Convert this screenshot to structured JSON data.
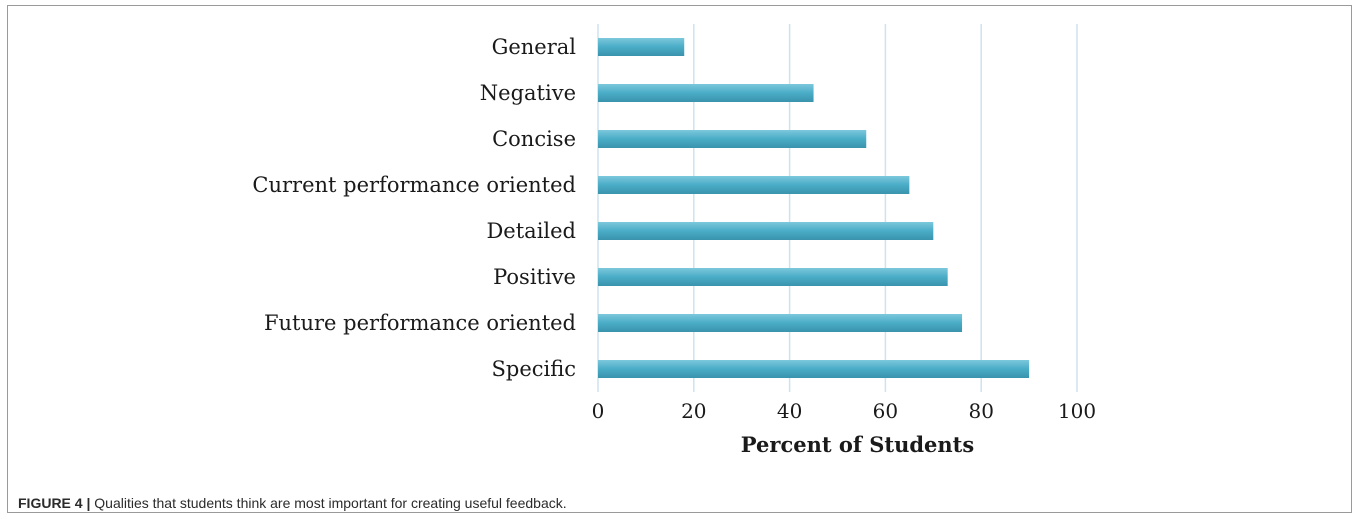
{
  "figure": {
    "label": "FIGURE 4 |",
    "caption": "Qualities that students think are most important for creating useful feedback."
  },
  "chart_data": {
    "type": "bar",
    "orientation": "horizontal",
    "categories": [
      "General",
      "Negative",
      "Concise",
      "Current performance oriented",
      "Detailed",
      "Positive",
      "Future performance oriented",
      "Specific"
    ],
    "values": [
      18,
      45,
      56,
      65,
      70,
      73,
      76,
      90
    ],
    "xlabel": "Percent  of Students",
    "ylabel": "",
    "xlim": [
      0,
      100
    ],
    "xticks": [
      0,
      20,
      40,
      60,
      80,
      100
    ],
    "grid": "vertical",
    "bar_color": "#4aacc6"
  }
}
